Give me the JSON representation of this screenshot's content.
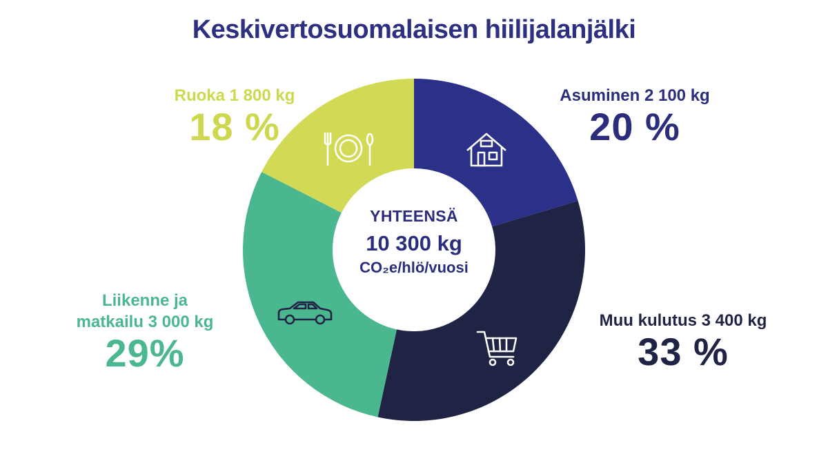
{
  "title": "Keskivertosuomalaisen hiilijalanjälki",
  "center": {
    "label": "YHTEENSÄ",
    "value": "10 300 kg",
    "unit": "CO₂e/hlö/vuosi"
  },
  "segments": [
    {
      "key": "housing",
      "name": "Asuminen 2 100 kg",
      "percent_label": "20 %",
      "icon": "house-icon",
      "color": "#2b3189"
    },
    {
      "key": "consumption",
      "name": "Muu kulutus 3 400 kg",
      "percent_label": "33 %",
      "icon": "shopping-cart-icon",
      "color": "#1f2344"
    },
    {
      "key": "transport",
      "name_line1": "Liikenne ja",
      "name_line2": "matkailu 3 000 kg",
      "percent_label": "29%",
      "icon": "car-icon",
      "color": "#4bb78f"
    },
    {
      "key": "food",
      "name": "Ruoka 1 800 kg",
      "percent_label": "18 %",
      "icon": "plate-cutlery-icon",
      "color": "#d2da55"
    }
  ],
  "chart_data": {
    "type": "pie",
    "title": "Keskivertosuomalaisen hiilijalanjälki",
    "categories": [
      "Asuminen",
      "Muu kulutus",
      "Liikenne ja matkailu",
      "Ruoka"
    ],
    "values_kg": [
      2100,
      3400,
      3000,
      1800
    ],
    "percents": [
      20,
      33,
      29,
      18
    ],
    "total_kg": 10300,
    "unit": "CO₂e/hlö/vuosi",
    "colors": [
      "#2b3189",
      "#1f2344",
      "#4bb78f",
      "#d2da55"
    ]
  }
}
